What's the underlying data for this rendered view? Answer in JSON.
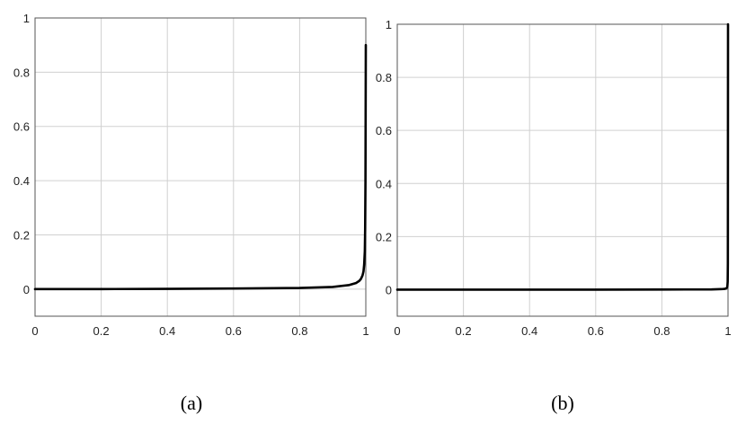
{
  "chart_data": [
    {
      "type": "line",
      "caption": "(a)",
      "xlim": [
        0,
        1
      ],
      "ylim": [
        -0.1,
        1
      ],
      "grid": true,
      "xticks": [
        "0",
        "0.2",
        "0.4",
        "0.6",
        "0.8",
        "1"
      ],
      "yticks": [
        "0",
        "0.2",
        "0.4",
        "0.6",
        "0.8",
        "1"
      ],
      "series": [
        {
          "color": "#000000",
          "x": [
            0,
            0.2,
            0.4,
            0.6,
            0.8,
            0.9,
            0.95,
            0.97,
            0.98,
            0.985,
            0.99,
            0.993,
            0.995,
            0.997,
            0.998,
            0.999,
            1.0
          ],
          "y": [
            0,
            0,
            0.001,
            0.002,
            0.004,
            0.008,
            0.015,
            0.022,
            0.03,
            0.037,
            0.05,
            0.065,
            0.09,
            0.14,
            0.22,
            0.4,
            0.9
          ]
        }
      ]
    },
    {
      "type": "line",
      "caption": "(b)",
      "xlim": [
        0,
        1
      ],
      "ylim": [
        -0.1,
        1
      ],
      "grid": true,
      "xticks": [
        "0",
        "0.2",
        "0.4",
        "0.6",
        "0.8",
        "1"
      ],
      "yticks": [
        "0",
        "0.2",
        "0.4",
        "0.6",
        "0.8",
        "1"
      ],
      "series": [
        {
          "color": "#000000",
          "x": [
            0,
            0.2,
            0.4,
            0.6,
            0.8,
            0.95,
            0.98,
            0.99,
            0.995,
            0.997,
            0.998,
            0.999,
            0.9995,
            1.0
          ],
          "y": [
            0,
            0,
            0,
            0,
            0.0005,
            0.001,
            0.002,
            0.003,
            0.005,
            0.008,
            0.012,
            0.03,
            0.1,
            1.0
          ]
        }
      ]
    }
  ]
}
